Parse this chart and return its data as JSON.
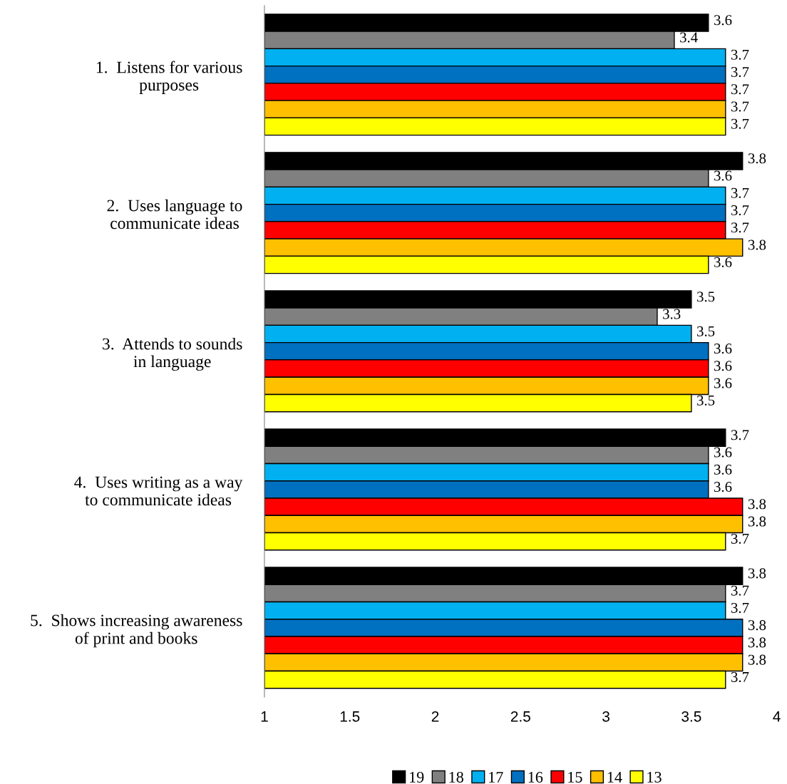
{
  "chart_data": {
    "type": "bar",
    "orientation": "horizontal",
    "categories": [
      "1.  Listens for various\npurposes",
      "2.  Uses language to\ncommunicate ideas",
      "3.  Attends to sounds\nin language",
      "4.  Uses writing as a way\nto communicate ideas",
      "5.  Shows increasing awareness\nof print and books"
    ],
    "series": [
      {
        "name": "19",
        "color": "#000000",
        "values": [
          3.6,
          3.8,
          3.5,
          3.7,
          3.8
        ]
      },
      {
        "name": "18",
        "color": "#808080",
        "values": [
          3.4,
          3.6,
          3.3,
          3.6,
          3.7
        ]
      },
      {
        "name": "17",
        "color": "#00b0f0",
        "values": [
          3.7,
          3.7,
          3.5,
          3.6,
          3.7
        ]
      },
      {
        "name": "16",
        "color": "#0070c0",
        "values": [
          3.7,
          3.7,
          3.6,
          3.6,
          3.8
        ]
      },
      {
        "name": "15",
        "color": "#ff0000",
        "values": [
          3.7,
          3.7,
          3.6,
          3.8,
          3.8
        ]
      },
      {
        "name": "14",
        "color": "#ffc000",
        "values": [
          3.7,
          3.8,
          3.6,
          3.8,
          3.8
        ]
      },
      {
        "name": "13",
        "color": "#ffff00",
        "values": [
          3.7,
          3.6,
          3.5,
          3.7,
          3.7
        ]
      }
    ],
    "xlim": [
      1,
      4
    ],
    "xticks": [
      1,
      1.5,
      2,
      2.5,
      3,
      3.5,
      4
    ],
    "data_labels": true,
    "grid": false,
    "legend": "bottom"
  }
}
